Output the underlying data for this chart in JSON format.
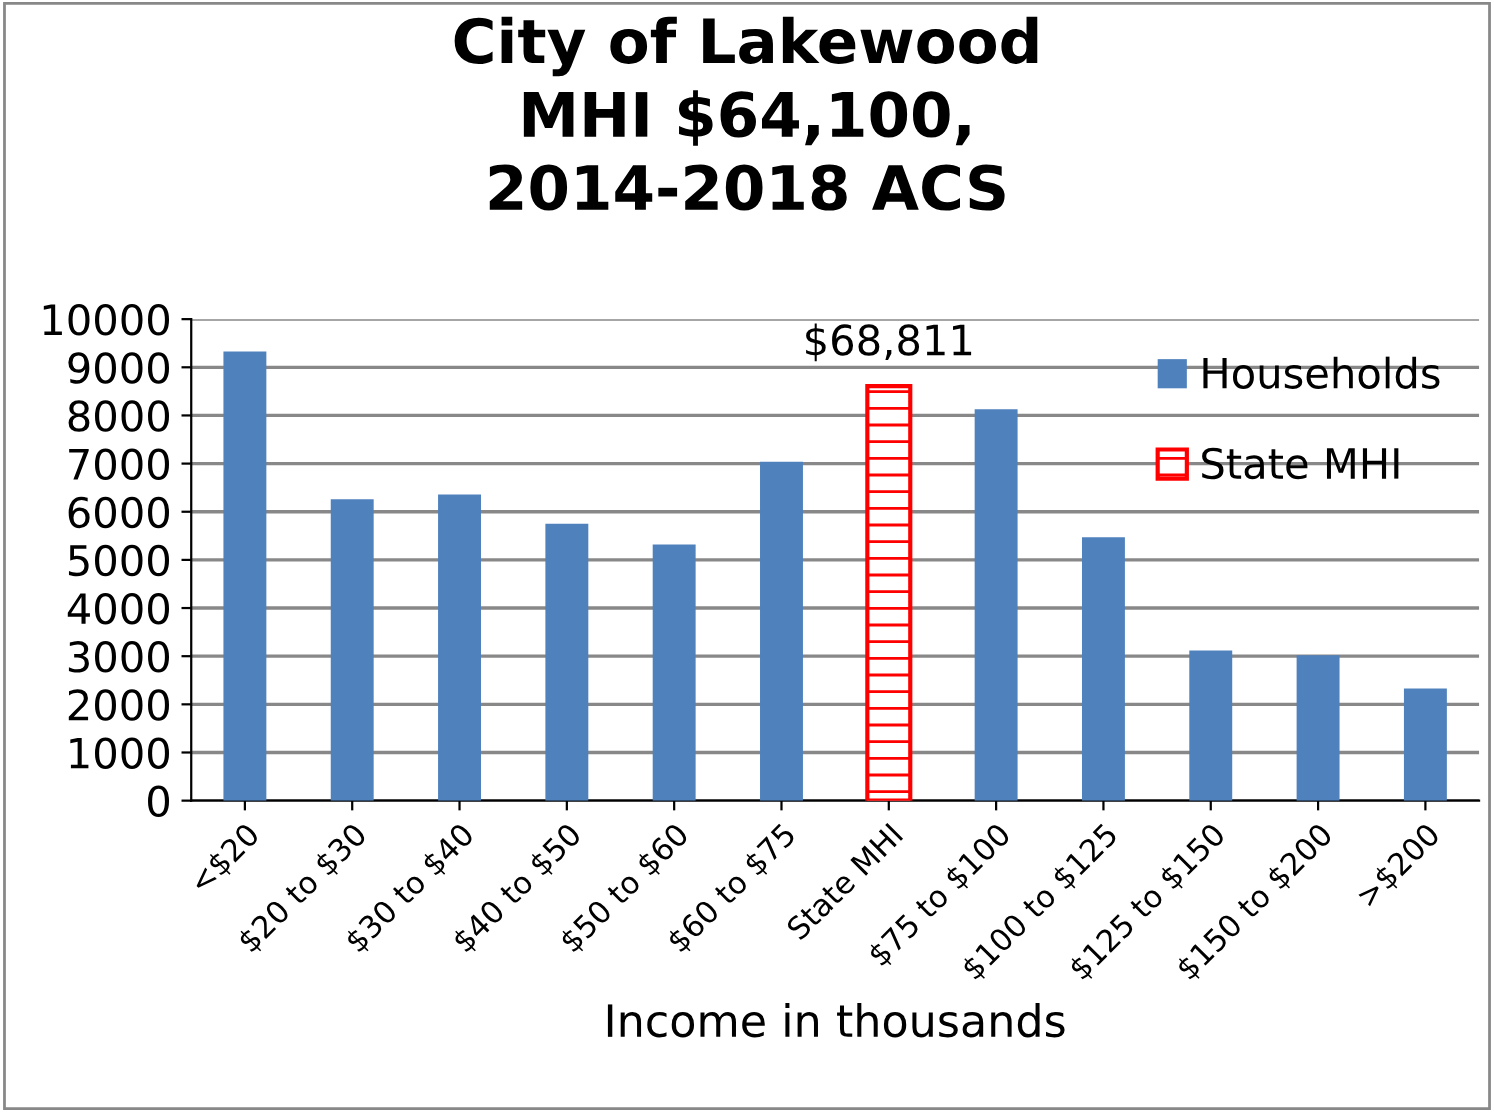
{
  "chart_data": {
    "type": "bar",
    "title": "City of Lakewood\nMHI $64,100,\n2014-2018 ACS",
    "xlabel": "Income in thousands",
    "categories": [
      "<$20",
      "$20 to $30",
      "$30 to $40",
      "$40 to $50",
      "$50 to $60",
      "$60 to $75",
      "State MHI",
      "$75 to $100",
      "$100 to $125",
      "$125 to $150",
      "$150 to $200",
      ">$200"
    ],
    "series": [
      {
        "name": "Households",
        "color": "#4f81bd",
        "values": [
          9330,
          6260,
          6360,
          5750,
          5320,
          7040,
          null,
          8130,
          5470,
          3120,
          3020,
          2330
        ]
      },
      {
        "name": "State MHI",
        "color": "#ff0000",
        "values": [
          null,
          null,
          null,
          null,
          null,
          null,
          8610,
          null,
          null,
          null,
          null,
          null
        ]
      }
    ],
    "annotations": [
      {
        "text": "$68,811",
        "x": "State MHI",
        "y": 8610
      }
    ],
    "ylim": [
      0,
      10000
    ],
    "yticks": [
      0,
      1000,
      2000,
      3000,
      4000,
      5000,
      6000,
      7000,
      8000,
      9000,
      10000
    ],
    "grid": "y",
    "legend": "top right"
  }
}
